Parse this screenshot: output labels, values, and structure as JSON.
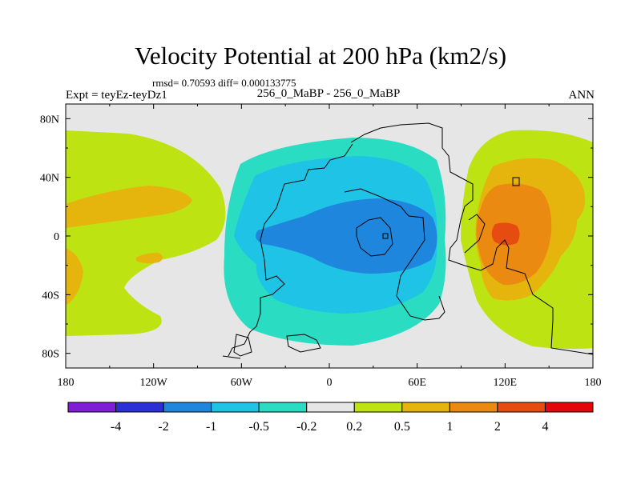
{
  "header": {
    "title": "Velocity Potential at 200 hPa (km2/s)",
    "stats": "rmsd= 0.70593 diff= 0.000133775",
    "experiment": "Expt = teyEz-teyDz1",
    "cases": "256_0_MaBP - 256_0_MaBP",
    "season": "ANN"
  },
  "colors": {
    "below_minus4": "#7f1ed7",
    "minus4_minus2": "#2a2fd6",
    "minus2_minus1": "#1f86dd",
    "minus1_minus05": "#1ec3e6",
    "minus05_minus02": "#29dcc2",
    "minus02_02": "#e6e6e6",
    "p02_p05": "#bde313",
    "p05_p1": "#e5b50e",
    "p1_p2": "#ea8a10",
    "p2_p4": "#e64c0f",
    "above_4": "#e3070b"
  },
  "chart_data": {
    "type": "contour_map",
    "projection": "cylindrical equidistant",
    "x_axis": {
      "range": [
        -180,
        180
      ],
      "ticks": [
        -180,
        -120,
        -60,
        0,
        60,
        120,
        180
      ],
      "tick_labels": [
        "180",
        "120W",
        "60W",
        "0",
        "60E",
        "120E",
        "180"
      ]
    },
    "y_axis": {
      "range": [
        -90,
        90
      ],
      "ticks": [
        -80,
        -40,
        0,
        40,
        80
      ],
      "tick_labels": [
        "80S",
        "40S",
        "0",
        "40N",
        "80N"
      ]
    },
    "colorbar": {
      "levels": [
        -4,
        -2,
        -1,
        -0.5,
        -0.2,
        0.2,
        0.5,
        1,
        2,
        4
      ],
      "labels": [
        "-4",
        "-2",
        "-1",
        "-0.5",
        "-0.2",
        "0.2",
        "0.5",
        "1",
        "2",
        "4"
      ],
      "bins": [
        "below_minus4",
        "minus4_minus2",
        "minus2_minus1",
        "minus1_minus05",
        "minus05_minus02",
        "minus02_02",
        "p02_p05",
        "p05_p1",
        "p1_p2",
        "p2_p4",
        "above_4"
      ]
    },
    "features": [
      {
        "name": "negative-center",
        "lon": 40,
        "lat": 0,
        "value": "between -2 and -1"
      },
      {
        "name": "positive-center",
        "lon": 125,
        "lat": 0,
        "value": "between 2 and 4"
      },
      {
        "name": "positive-region-west",
        "lon": -160,
        "lat": 10,
        "value": "between 0.5 and 1"
      }
    ]
  }
}
